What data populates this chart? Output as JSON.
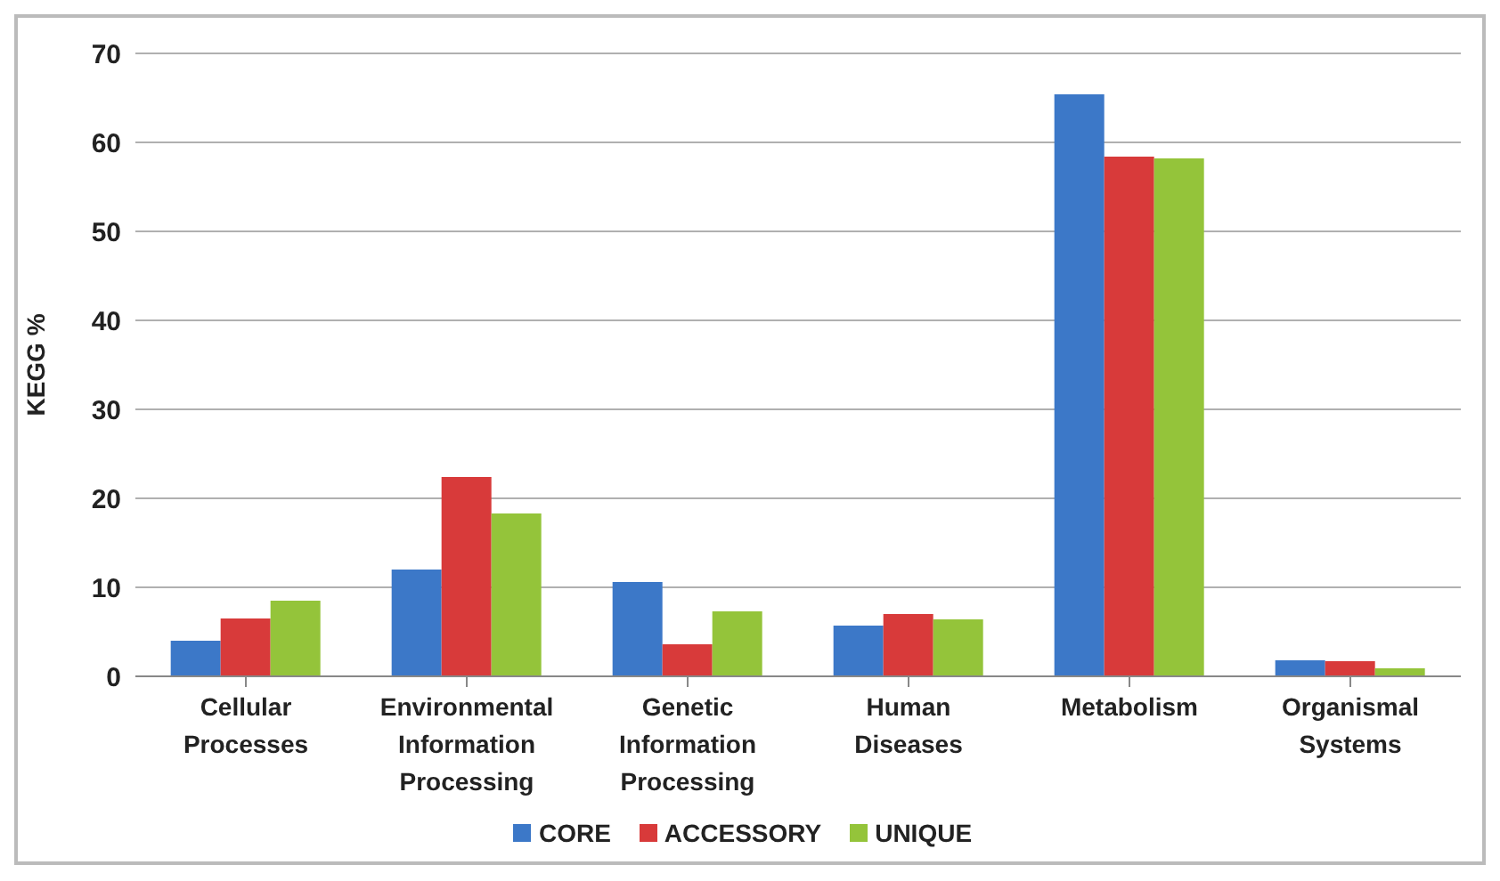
{
  "chart_data": {
    "type": "bar",
    "ylabel": "KEGG %",
    "categories": [
      "Cellular Processes",
      "Environmental Information Processing",
      "Genetic Information Processing",
      "Human Diseases",
      "Metabolism",
      "Organismal Systems"
    ],
    "series": [
      {
        "name": "CORE",
        "color": "#3c78c8",
        "values": [
          4.0,
          12.0,
          10.6,
          5.7,
          65.4,
          1.8
        ]
      },
      {
        "name": "ACCESSORY",
        "color": "#d83a3a",
        "values": [
          6.5,
          22.4,
          3.6,
          7.0,
          58.4,
          1.7
        ]
      },
      {
        "name": "UNIQUE",
        "color": "#94c43a",
        "values": [
          8.5,
          18.3,
          7.3,
          6.4,
          58.2,
          0.9
        ]
      }
    ],
    "ylim": [
      0,
      70
    ],
    "yticks": [
      0,
      10,
      20,
      30,
      40,
      50,
      60,
      70
    ],
    "grid": "y",
    "legend": "bottom"
  }
}
